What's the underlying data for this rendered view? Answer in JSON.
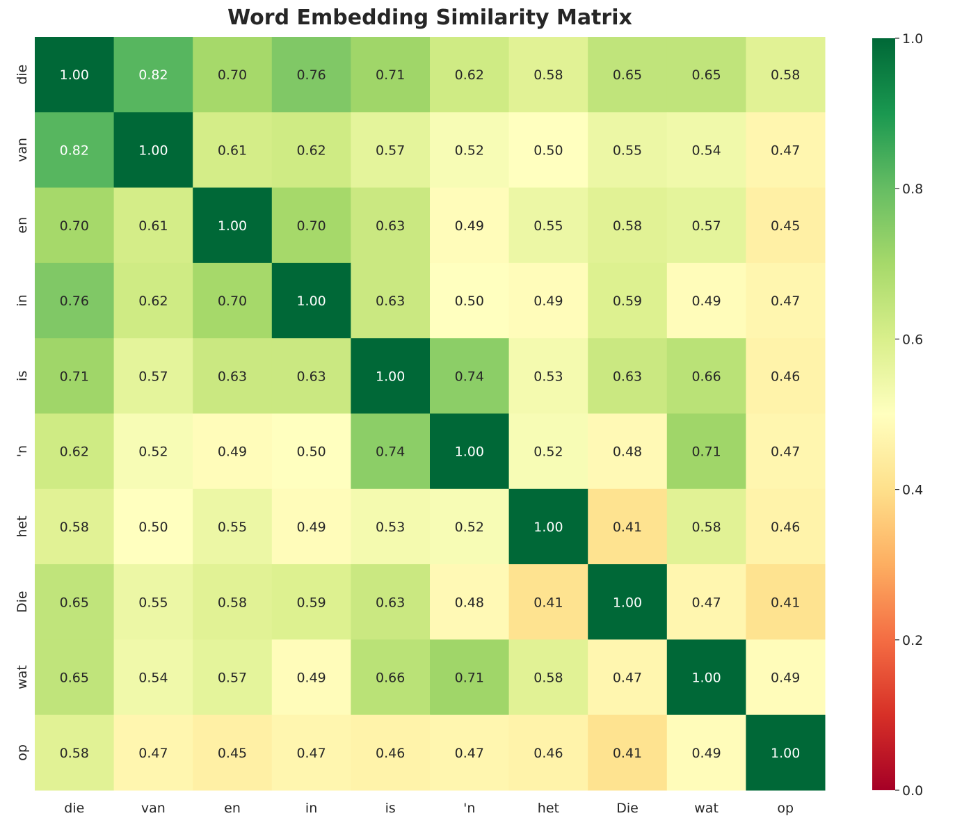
{
  "chart_data": {
    "type": "heatmap",
    "title": "Word Embedding Similarity Matrix",
    "x_labels": [
      "die",
      "van",
      "en",
      "in",
      "is",
      "'n",
      "het",
      "Die",
      "wat",
      "op"
    ],
    "y_labels": [
      "die",
      "van",
      "en",
      "in",
      "is",
      "'n",
      "het",
      "Die",
      "wat",
      "op"
    ],
    "values": [
      [
        1.0,
        0.82,
        0.7,
        0.76,
        0.71,
        0.62,
        0.58,
        0.65,
        0.65,
        0.58
      ],
      [
        0.82,
        1.0,
        0.61,
        0.62,
        0.57,
        0.52,
        0.5,
        0.55,
        0.54,
        0.47
      ],
      [
        0.7,
        0.61,
        1.0,
        0.7,
        0.63,
        0.49,
        0.55,
        0.58,
        0.57,
        0.45
      ],
      [
        0.76,
        0.62,
        0.7,
        1.0,
        0.63,
        0.5,
        0.49,
        0.59,
        0.49,
        0.47
      ],
      [
        0.71,
        0.57,
        0.63,
        0.63,
        1.0,
        0.74,
        0.53,
        0.63,
        0.66,
        0.46
      ],
      [
        0.62,
        0.52,
        0.49,
        0.5,
        0.74,
        1.0,
        0.52,
        0.48,
        0.71,
        0.47
      ],
      [
        0.58,
        0.5,
        0.55,
        0.49,
        0.53,
        0.52,
        1.0,
        0.41,
        0.58,
        0.46
      ],
      [
        0.65,
        0.55,
        0.58,
        0.59,
        0.63,
        0.48,
        0.41,
        1.0,
        0.47,
        0.41
      ],
      [
        0.65,
        0.54,
        0.57,
        0.49,
        0.66,
        0.71,
        0.58,
        0.47,
        1.0,
        0.49
      ],
      [
        0.58,
        0.47,
        0.45,
        0.47,
        0.46,
        0.47,
        0.46,
        0.41,
        0.49,
        1.0
      ]
    ],
    "colormap": "RdYlGn",
    "vmin": 0.0,
    "vmax": 1.0,
    "colorbar_ticks": [
      "0.0",
      "0.2",
      "0.4",
      "0.6",
      "0.8",
      "1.0"
    ],
    "value_format": "2 decimals",
    "grid": false
  }
}
